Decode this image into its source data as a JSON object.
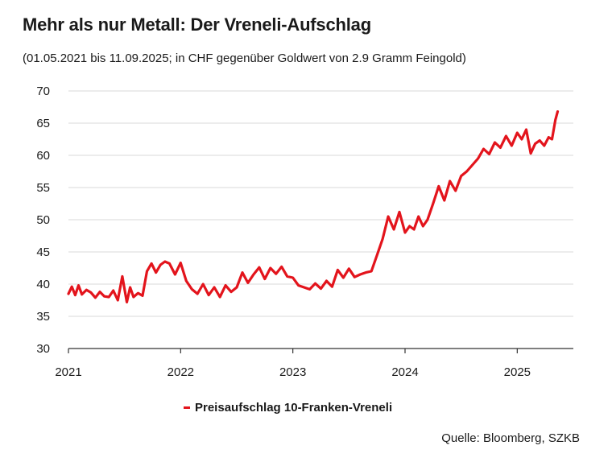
{
  "title": "Mehr als nur Metall: Der Vreneli-Aufschlag",
  "subtitle": "(01.05.2021 bis 11.09.2025; in CHF gegenüber Goldwert von 2.9 Gramm Feingold)",
  "source": "Quelle: Bloomberg, SZKB",
  "colors": {
    "series": "#e3141c",
    "grid": "#d9d9d9",
    "axis": "#333333"
  },
  "chart_data": {
    "type": "line",
    "title": "Mehr als nur Metall: Der Vreneli-Aufschlag",
    "subtitle": "(01.05.2021 bis 11.09.2025; in CHF gegenüber Goldwert von 2.9 Gramm Feingold)",
    "xlabel": "",
    "ylabel": "",
    "xlim": [
      2021.0,
      2025.5
    ],
    "ylim": [
      30,
      70
    ],
    "yticks": [
      30,
      35,
      40,
      45,
      50,
      55,
      60,
      65,
      70
    ],
    "xticks": [
      2021,
      2022,
      2023,
      2024,
      2025
    ],
    "grid": true,
    "legend": "bottom",
    "series": [
      {
        "name": "Preisaufschlag 10-Franken-Vreneli",
        "color": "#e3141c",
        "x": [
          2021.0,
          2021.03,
          2021.06,
          2021.09,
          2021.12,
          2021.16,
          2021.2,
          2021.24,
          2021.28,
          2021.32,
          2021.36,
          2021.4,
          2021.44,
          2021.48,
          2021.52,
          2021.55,
          2021.58,
          2021.62,
          2021.66,
          2021.7,
          2021.74,
          2021.78,
          2021.82,
          2021.86,
          2021.9,
          2021.95,
          2022.0,
          2022.05,
          2022.1,
          2022.15,
          2022.2,
          2022.25,
          2022.3,
          2022.35,
          2022.4,
          2022.45,
          2022.5,
          2022.55,
          2022.6,
          2022.65,
          2022.7,
          2022.75,
          2022.8,
          2022.85,
          2022.9,
          2022.95,
          2023.0,
          2023.05,
          2023.1,
          2023.15,
          2023.2,
          2023.25,
          2023.3,
          2023.35,
          2023.4,
          2023.45,
          2023.5,
          2023.55,
          2023.6,
          2023.65,
          2023.7,
          2023.75,
          2023.8,
          2023.85,
          2023.9,
          2023.95,
          2024.0,
          2024.04,
          2024.08,
          2024.12,
          2024.16,
          2024.2,
          2024.25,
          2024.3,
          2024.35,
          2024.4,
          2024.45,
          2024.5,
          2024.55,
          2024.6,
          2024.65,
          2024.7,
          2024.75,
          2024.8,
          2024.85,
          2024.9,
          2024.95,
          2025.0,
          2025.04,
          2025.08,
          2025.12,
          2025.16,
          2025.2,
          2025.24,
          2025.28,
          2025.31,
          2025.34,
          2025.36
        ],
        "values": [
          38.5,
          39.6,
          38.3,
          39.8,
          38.4,
          39.1,
          38.7,
          37.9,
          38.8,
          38.1,
          38.0,
          39.0,
          37.5,
          41.2,
          37.2,
          39.5,
          38.0,
          38.6,
          38.2,
          42.0,
          43.2,
          41.8,
          43.0,
          43.5,
          43.2,
          41.5,
          43.3,
          40.5,
          39.2,
          38.5,
          40.0,
          38.3,
          39.5,
          38.0,
          39.8,
          38.8,
          39.5,
          41.8,
          40.2,
          41.5,
          42.6,
          40.8,
          42.5,
          41.6,
          42.7,
          41.2,
          41.0,
          39.8,
          39.5,
          39.2,
          40.1,
          39.3,
          40.5,
          39.6,
          42.2,
          41.0,
          42.4,
          41.1,
          41.5,
          41.8,
          42.0,
          44.5,
          47.0,
          50.5,
          48.5,
          51.2,
          48.0,
          49.0,
          48.5,
          50.5,
          49.0,
          50.0,
          52.5,
          55.2,
          53.0,
          56.0,
          54.5,
          56.8,
          57.5,
          58.5,
          59.5,
          61.0,
          60.2,
          62.0,
          61.2,
          63.0,
          61.5,
          63.5,
          62.5,
          64.0,
          60.3,
          61.8,
          62.3,
          61.5,
          62.8,
          62.5,
          65.5,
          66.8
        ]
      }
    ]
  }
}
